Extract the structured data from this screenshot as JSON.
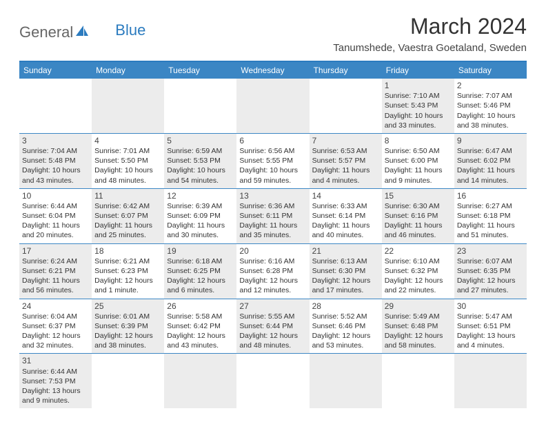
{
  "logo": {
    "general": "General",
    "blue": "Blue"
  },
  "header": {
    "title": "March 2024",
    "location": "Tanumshede, Vaestra Goetaland, Sweden"
  },
  "style": {
    "accent_color": "#3b86c4",
    "divider_color": "#2b7bbf",
    "shade_color": "#ececec",
    "background_color": "#ffffff",
    "title_fontsize": 32,
    "location_fontsize": 15,
    "header_fontsize": 12,
    "cell_fontsize": 10.5,
    "columns": 7,
    "rows": 6
  },
  "weekday_labels": [
    "Sunday",
    "Monday",
    "Tuesday",
    "Wednesday",
    "Thursday",
    "Friday",
    "Saturday"
  ],
  "weeks": [
    [
      {
        "shade": false
      },
      {
        "shade": true
      },
      {
        "shade": false
      },
      {
        "shade": true
      },
      {
        "shade": false
      },
      {
        "day": "1",
        "shade": true,
        "sunrise": "Sunrise: 7:10 AM",
        "sunset": "Sunset: 5:43 PM",
        "daylight1": "Daylight: 10 hours",
        "daylight2": "and 33 minutes."
      },
      {
        "day": "2",
        "shade": false,
        "sunrise": "Sunrise: 7:07 AM",
        "sunset": "Sunset: 5:46 PM",
        "daylight1": "Daylight: 10 hours",
        "daylight2": "and 38 minutes."
      }
    ],
    [
      {
        "day": "3",
        "shade": true,
        "sunrise": "Sunrise: 7:04 AM",
        "sunset": "Sunset: 5:48 PM",
        "daylight1": "Daylight: 10 hours",
        "daylight2": "and 43 minutes."
      },
      {
        "day": "4",
        "shade": false,
        "sunrise": "Sunrise: 7:01 AM",
        "sunset": "Sunset: 5:50 PM",
        "daylight1": "Daylight: 10 hours",
        "daylight2": "and 48 minutes."
      },
      {
        "day": "5",
        "shade": true,
        "sunrise": "Sunrise: 6:59 AM",
        "sunset": "Sunset: 5:53 PM",
        "daylight1": "Daylight: 10 hours",
        "daylight2": "and 54 minutes."
      },
      {
        "day": "6",
        "shade": false,
        "sunrise": "Sunrise: 6:56 AM",
        "sunset": "Sunset: 5:55 PM",
        "daylight1": "Daylight: 10 hours",
        "daylight2": "and 59 minutes."
      },
      {
        "day": "7",
        "shade": true,
        "sunrise": "Sunrise: 6:53 AM",
        "sunset": "Sunset: 5:57 PM",
        "daylight1": "Daylight: 11 hours",
        "daylight2": "and 4 minutes."
      },
      {
        "day": "8",
        "shade": false,
        "sunrise": "Sunrise: 6:50 AM",
        "sunset": "Sunset: 6:00 PM",
        "daylight1": "Daylight: 11 hours",
        "daylight2": "and 9 minutes."
      },
      {
        "day": "9",
        "shade": true,
        "sunrise": "Sunrise: 6:47 AM",
        "sunset": "Sunset: 6:02 PM",
        "daylight1": "Daylight: 11 hours",
        "daylight2": "and 14 minutes."
      }
    ],
    [
      {
        "day": "10",
        "shade": false,
        "sunrise": "Sunrise: 6:44 AM",
        "sunset": "Sunset: 6:04 PM",
        "daylight1": "Daylight: 11 hours",
        "daylight2": "and 20 minutes."
      },
      {
        "day": "11",
        "shade": true,
        "sunrise": "Sunrise: 6:42 AM",
        "sunset": "Sunset: 6:07 PM",
        "daylight1": "Daylight: 11 hours",
        "daylight2": "and 25 minutes."
      },
      {
        "day": "12",
        "shade": false,
        "sunrise": "Sunrise: 6:39 AM",
        "sunset": "Sunset: 6:09 PM",
        "daylight1": "Daylight: 11 hours",
        "daylight2": "and 30 minutes."
      },
      {
        "day": "13",
        "shade": true,
        "sunrise": "Sunrise: 6:36 AM",
        "sunset": "Sunset: 6:11 PM",
        "daylight1": "Daylight: 11 hours",
        "daylight2": "and 35 minutes."
      },
      {
        "day": "14",
        "shade": false,
        "sunrise": "Sunrise: 6:33 AM",
        "sunset": "Sunset: 6:14 PM",
        "daylight1": "Daylight: 11 hours",
        "daylight2": "and 40 minutes."
      },
      {
        "day": "15",
        "shade": true,
        "sunrise": "Sunrise: 6:30 AM",
        "sunset": "Sunset: 6:16 PM",
        "daylight1": "Daylight: 11 hours",
        "daylight2": "and 46 minutes."
      },
      {
        "day": "16",
        "shade": false,
        "sunrise": "Sunrise: 6:27 AM",
        "sunset": "Sunset: 6:18 PM",
        "daylight1": "Daylight: 11 hours",
        "daylight2": "and 51 minutes."
      }
    ],
    [
      {
        "day": "17",
        "shade": true,
        "sunrise": "Sunrise: 6:24 AM",
        "sunset": "Sunset: 6:21 PM",
        "daylight1": "Daylight: 11 hours",
        "daylight2": "and 56 minutes."
      },
      {
        "day": "18",
        "shade": false,
        "sunrise": "Sunrise: 6:21 AM",
        "sunset": "Sunset: 6:23 PM",
        "daylight1": "Daylight: 12 hours",
        "daylight2": "and 1 minute."
      },
      {
        "day": "19",
        "shade": true,
        "sunrise": "Sunrise: 6:18 AM",
        "sunset": "Sunset: 6:25 PM",
        "daylight1": "Daylight: 12 hours",
        "daylight2": "and 6 minutes."
      },
      {
        "day": "20",
        "shade": false,
        "sunrise": "Sunrise: 6:16 AM",
        "sunset": "Sunset: 6:28 PM",
        "daylight1": "Daylight: 12 hours",
        "daylight2": "and 12 minutes."
      },
      {
        "day": "21",
        "shade": true,
        "sunrise": "Sunrise: 6:13 AM",
        "sunset": "Sunset: 6:30 PM",
        "daylight1": "Daylight: 12 hours",
        "daylight2": "and 17 minutes."
      },
      {
        "day": "22",
        "shade": false,
        "sunrise": "Sunrise: 6:10 AM",
        "sunset": "Sunset: 6:32 PM",
        "daylight1": "Daylight: 12 hours",
        "daylight2": "and 22 minutes."
      },
      {
        "day": "23",
        "shade": true,
        "sunrise": "Sunrise: 6:07 AM",
        "sunset": "Sunset: 6:35 PM",
        "daylight1": "Daylight: 12 hours",
        "daylight2": "and 27 minutes."
      }
    ],
    [
      {
        "day": "24",
        "shade": false,
        "sunrise": "Sunrise: 6:04 AM",
        "sunset": "Sunset: 6:37 PM",
        "daylight1": "Daylight: 12 hours",
        "daylight2": "and 32 minutes."
      },
      {
        "day": "25",
        "shade": true,
        "sunrise": "Sunrise: 6:01 AM",
        "sunset": "Sunset: 6:39 PM",
        "daylight1": "Daylight: 12 hours",
        "daylight2": "and 38 minutes."
      },
      {
        "day": "26",
        "shade": false,
        "sunrise": "Sunrise: 5:58 AM",
        "sunset": "Sunset: 6:42 PM",
        "daylight1": "Daylight: 12 hours",
        "daylight2": "and 43 minutes."
      },
      {
        "day": "27",
        "shade": true,
        "sunrise": "Sunrise: 5:55 AM",
        "sunset": "Sunset: 6:44 PM",
        "daylight1": "Daylight: 12 hours",
        "daylight2": "and 48 minutes."
      },
      {
        "day": "28",
        "shade": false,
        "sunrise": "Sunrise: 5:52 AM",
        "sunset": "Sunset: 6:46 PM",
        "daylight1": "Daylight: 12 hours",
        "daylight2": "and 53 minutes."
      },
      {
        "day": "29",
        "shade": true,
        "sunrise": "Sunrise: 5:49 AM",
        "sunset": "Sunset: 6:48 PM",
        "daylight1": "Daylight: 12 hours",
        "daylight2": "and 58 minutes."
      },
      {
        "day": "30",
        "shade": false,
        "sunrise": "Sunrise: 5:47 AM",
        "sunset": "Sunset: 6:51 PM",
        "daylight1": "Daylight: 13 hours",
        "daylight2": "and 4 minutes."
      }
    ],
    [
      {
        "day": "31",
        "shade": true,
        "sunrise": "Sunrise: 6:44 AM",
        "sunset": "Sunset: 7:53 PM",
        "daylight1": "Daylight: 13 hours",
        "daylight2": "and 9 minutes."
      },
      {
        "shade": false
      },
      {
        "shade": true
      },
      {
        "shade": false
      },
      {
        "shade": true
      },
      {
        "shade": false
      },
      {
        "shade": true
      }
    ]
  ]
}
